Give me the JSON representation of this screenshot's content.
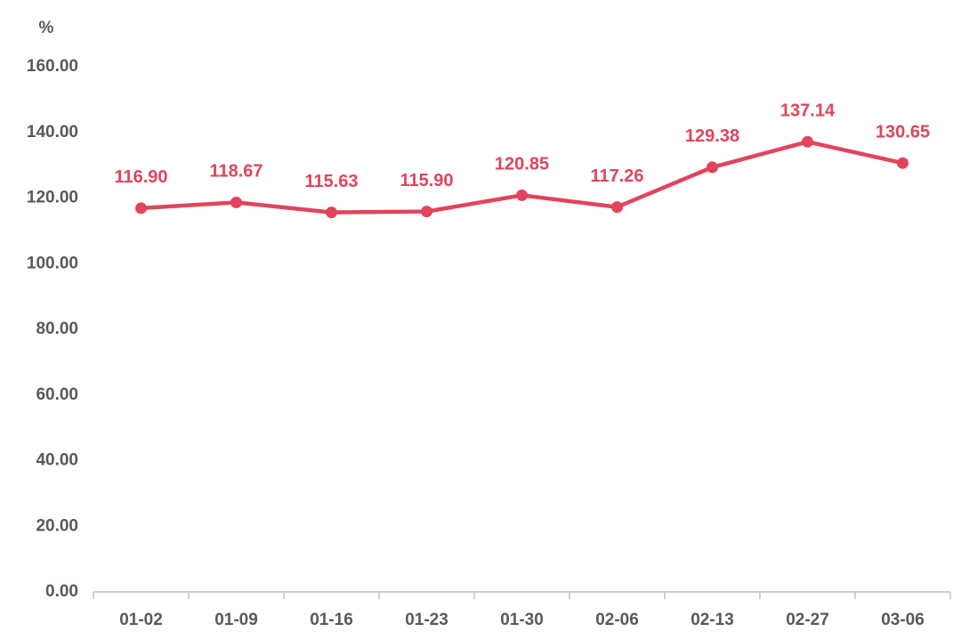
{
  "chart_data": {
    "type": "line",
    "y_label": "%",
    "categories": [
      "01-02",
      "01-09",
      "01-16",
      "01-23",
      "01-30",
      "02-06",
      "02-13",
      "02-27",
      "03-06"
    ],
    "values": [
      116.9,
      118.67,
      115.63,
      115.9,
      120.85,
      117.26,
      129.38,
      137.14,
      130.65
    ],
    "value_labels": [
      "116.90",
      "118.67",
      "115.63",
      "115.90",
      "120.85",
      "117.26",
      "129.38",
      "137.14",
      "130.65"
    ],
    "color": "#e2445c",
    "ylim": [
      0,
      160
    ],
    "yticks": [
      {
        "value": 0,
        "label": "0.00"
      },
      {
        "value": 20,
        "label": "20.00"
      },
      {
        "value": 40,
        "label": "40.00"
      },
      {
        "value": 60,
        "label": "60.00"
      },
      {
        "value": 80,
        "label": "80.00"
      },
      {
        "value": 100,
        "label": "100.00"
      },
      {
        "value": 120,
        "label": "120.00"
      },
      {
        "value": 140,
        "label": "140.00"
      },
      {
        "value": 160,
        "label": "160.00"
      }
    ],
    "grid": false
  }
}
